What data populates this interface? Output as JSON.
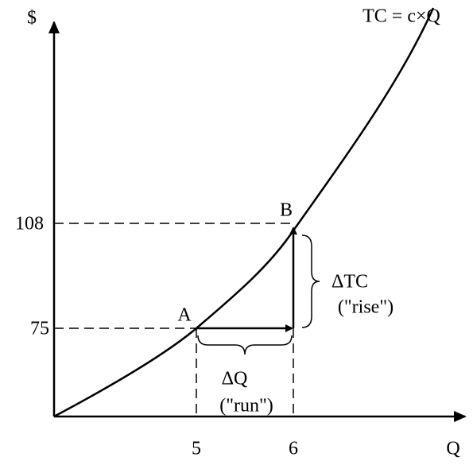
{
  "axes": {
    "y_label": "$",
    "x_label": "Q",
    "y_ticks": [
      "108",
      "75"
    ],
    "x_ticks": [
      "5",
      "6"
    ]
  },
  "curve_label": "TC = c×Q",
  "points": [
    "A",
    "B"
  ],
  "rise": {
    "label": "ΔTC",
    "note": "(\"rise\")"
  },
  "run": {
    "label": "ΔQ",
    "note": "(\"run\")"
  }
}
